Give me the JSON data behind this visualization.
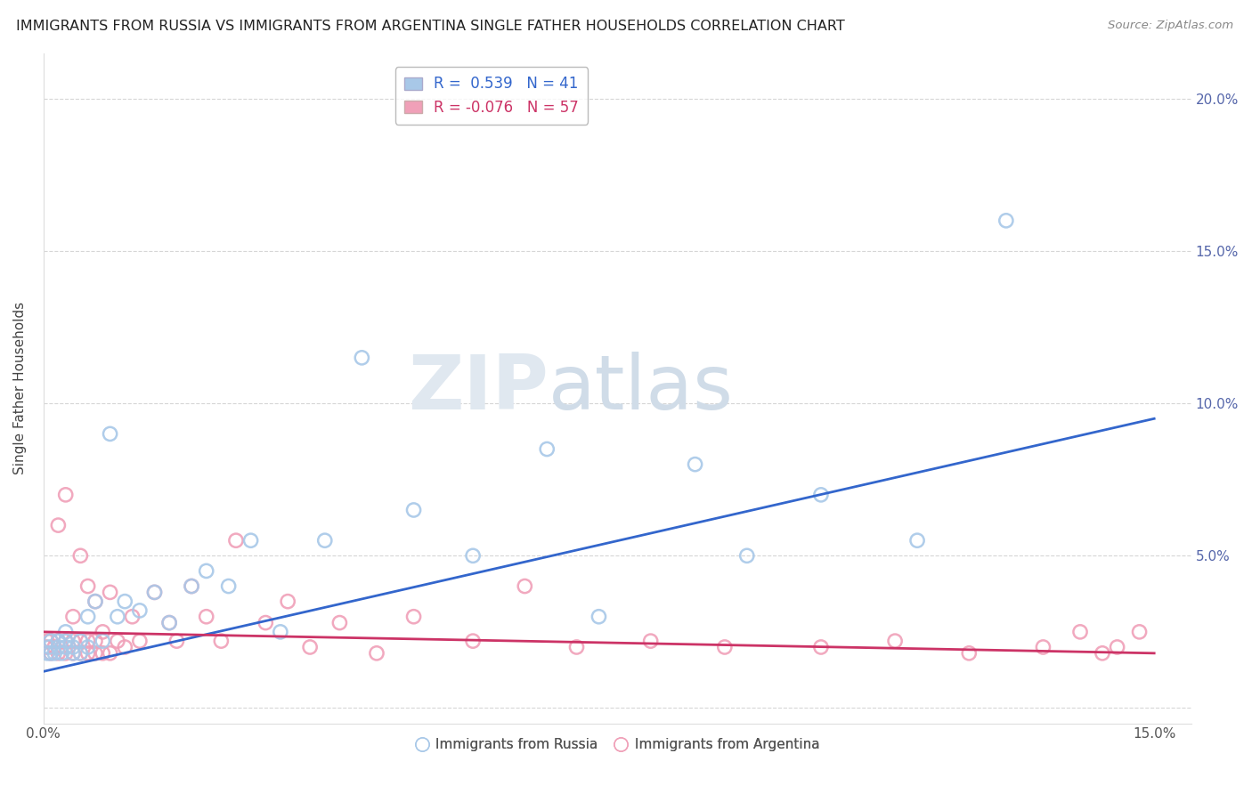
{
  "title": "IMMIGRANTS FROM RUSSIA VS IMMIGRANTS FROM ARGENTINA SINGLE FATHER HOUSEHOLDS CORRELATION CHART",
  "source": "Source: ZipAtlas.com",
  "ylabel": "Single Father Households",
  "xlim": [
    0.0,
    0.155
  ],
  "ylim": [
    -0.005,
    0.215
  ],
  "russia_R": 0.539,
  "russia_N": 41,
  "argentina_R": -0.076,
  "argentina_N": 57,
  "russia_color": "#a8c8e8",
  "argentina_color": "#f0a0b8",
  "russia_line_color": "#3366cc",
  "argentina_line_color": "#cc3366",
  "russia_scatter_x": [
    0.0005,
    0.0008,
    0.001,
    0.001,
    0.0015,
    0.002,
    0.002,
    0.0025,
    0.003,
    0.003,
    0.003,
    0.004,
    0.004,
    0.005,
    0.005,
    0.006,
    0.006,
    0.007,
    0.008,
    0.009,
    0.01,
    0.011,
    0.013,
    0.015,
    0.017,
    0.02,
    0.022,
    0.025,
    0.028,
    0.032,
    0.038,
    0.043,
    0.05,
    0.058,
    0.068,
    0.075,
    0.088,
    0.095,
    0.105,
    0.118,
    0.13
  ],
  "russia_scatter_y": [
    0.018,
    0.02,
    0.018,
    0.022,
    0.018,
    0.02,
    0.022,
    0.018,
    0.02,
    0.022,
    0.025,
    0.018,
    0.02,
    0.018,
    0.022,
    0.02,
    0.03,
    0.035,
    0.022,
    0.09,
    0.03,
    0.035,
    0.032,
    0.038,
    0.028,
    0.04,
    0.045,
    0.04,
    0.055,
    0.025,
    0.055,
    0.115,
    0.065,
    0.05,
    0.085,
    0.03,
    0.08,
    0.05,
    0.07,
    0.055,
    0.16
  ],
  "argentina_scatter_x": [
    0.0003,
    0.0005,
    0.001,
    0.001,
    0.0015,
    0.002,
    0.002,
    0.002,
    0.003,
    0.003,
    0.003,
    0.004,
    0.004,
    0.004,
    0.005,
    0.005,
    0.005,
    0.006,
    0.006,
    0.006,
    0.007,
    0.007,
    0.007,
    0.008,
    0.008,
    0.009,
    0.009,
    0.01,
    0.011,
    0.012,
    0.013,
    0.015,
    0.017,
    0.018,
    0.02,
    0.022,
    0.024,
    0.026,
    0.03,
    0.033,
    0.036,
    0.04,
    0.045,
    0.05,
    0.058,
    0.065,
    0.072,
    0.082,
    0.092,
    0.105,
    0.115,
    0.125,
    0.135,
    0.14,
    0.143,
    0.145,
    0.148
  ],
  "argentina_scatter_y": [
    0.02,
    0.022,
    0.018,
    0.022,
    0.02,
    0.018,
    0.022,
    0.06,
    0.018,
    0.022,
    0.07,
    0.018,
    0.022,
    0.03,
    0.018,
    0.022,
    0.05,
    0.018,
    0.022,
    0.04,
    0.018,
    0.022,
    0.035,
    0.018,
    0.025,
    0.018,
    0.038,
    0.022,
    0.02,
    0.03,
    0.022,
    0.038,
    0.028,
    0.022,
    0.04,
    0.03,
    0.022,
    0.055,
    0.028,
    0.035,
    0.02,
    0.028,
    0.018,
    0.03,
    0.022,
    0.04,
    0.02,
    0.022,
    0.02,
    0.02,
    0.022,
    0.018,
    0.02,
    0.025,
    0.018,
    0.02,
    0.025
  ],
  "russia_line_x0": 0.0,
  "russia_line_y0": 0.012,
  "russia_line_x1": 0.15,
  "russia_line_y1": 0.095,
  "argentina_line_x0": 0.0,
  "argentina_line_y0": 0.025,
  "argentina_line_x1": 0.15,
  "argentina_line_y1": 0.018
}
